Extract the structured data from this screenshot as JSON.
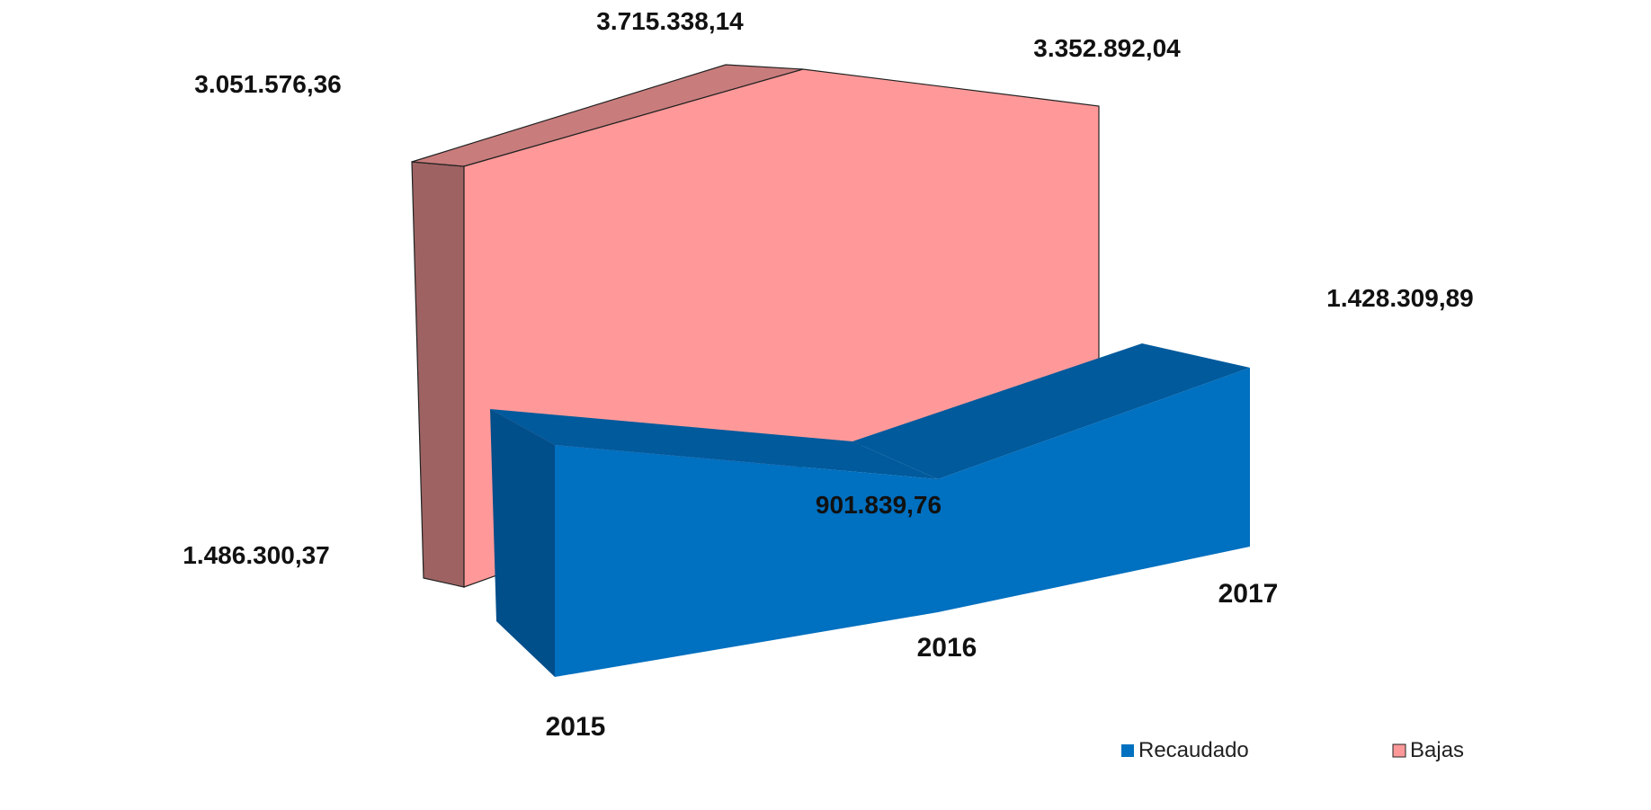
{
  "chart_data": {
    "type": "area",
    "subtype": "3d-area",
    "categories": [
      "2015",
      "2016",
      "2017"
    ],
    "series": [
      {
        "name": "Recaudado",
        "values": [
          1486300.37,
          901839.76,
          1428309.89
        ],
        "labels": [
          "1.486.300,37",
          "901.839,76",
          "1.428.309,89"
        ],
        "color": "#0070C0"
      },
      {
        "name": "Bajas",
        "values": [
          3051576.36,
          3715338.14,
          3352892.04
        ],
        "labels": [
          "3.051.576,36",
          "3.715.338,14",
          "3.352.892,04"
        ],
        "color": "#FF9999"
      }
    ],
    "legend": {
      "placement": "bottom-right",
      "items": [
        "Recaudado",
        "Bajas"
      ]
    },
    "grid": false
  }
}
